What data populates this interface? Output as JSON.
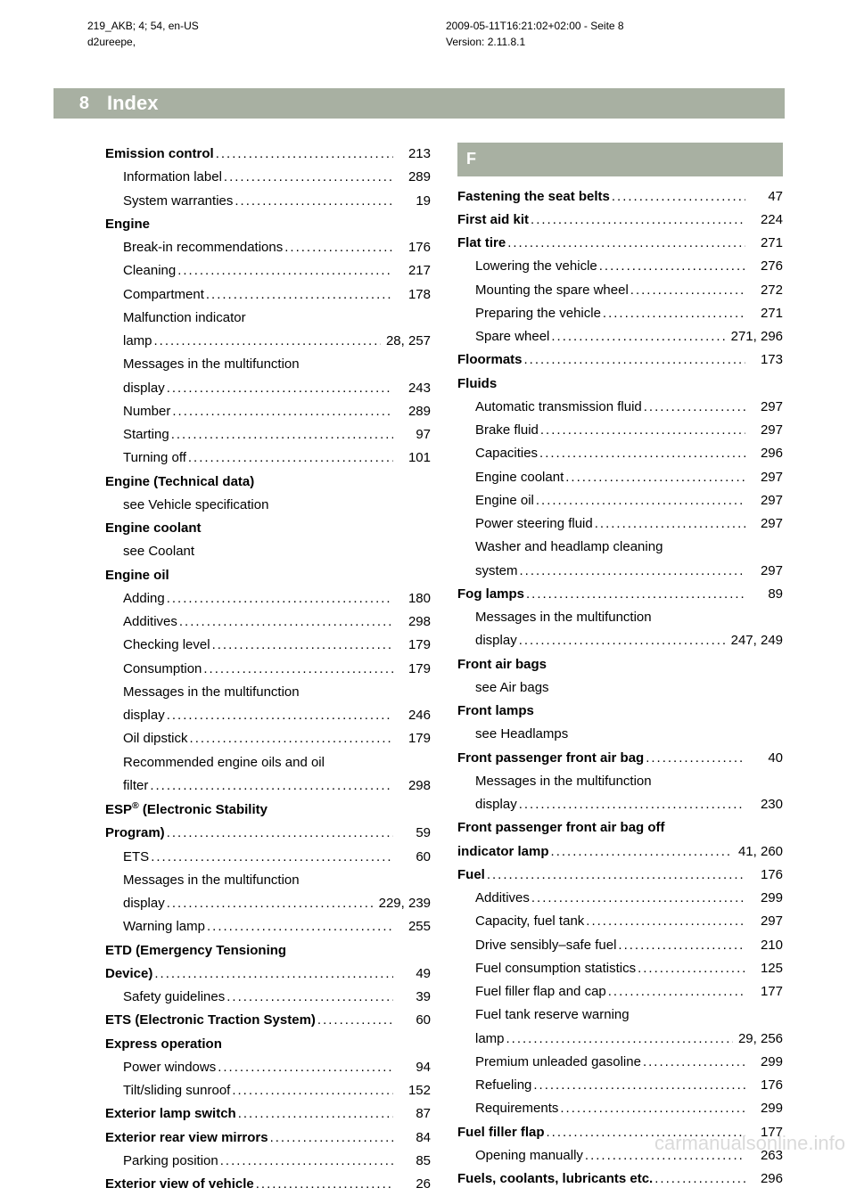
{
  "header": {
    "left_line1": "219_AKB; 4; 54, en-US",
    "left_line2": "d2ureepe,",
    "right_line1": "2009-05-11T16:21:02+02:00 - Seite 8",
    "right_line2": "Version: 2.11.8.1"
  },
  "pageNumber": "8",
  "indexTitle": "Index",
  "watermark": "carmanualsonline.info",
  "left": [
    {
      "t": "entry",
      "label": "Emission control",
      "bold": true,
      "page": "213"
    },
    {
      "t": "entry",
      "sub": true,
      "label": "Information label",
      "page": "289"
    },
    {
      "t": "entry",
      "sub": true,
      "label": "System warranties",
      "page": "19"
    },
    {
      "t": "head",
      "label": "Engine"
    },
    {
      "t": "entry",
      "sub": true,
      "label": "Break-in recommendations",
      "page": "176"
    },
    {
      "t": "entry",
      "sub": true,
      "label": "Cleaning",
      "page": "217"
    },
    {
      "t": "entry",
      "sub": true,
      "label": "Compartment",
      "page": "178"
    },
    {
      "t": "subhead",
      "label": "Malfunction indicator"
    },
    {
      "t": "entry",
      "sub": true,
      "label": "lamp",
      "page": "28, 257"
    },
    {
      "t": "subhead",
      "label": "Messages in the multifunction"
    },
    {
      "t": "entry",
      "sub": true,
      "label": "display",
      "page": "243"
    },
    {
      "t": "entry",
      "sub": true,
      "label": "Number",
      "page": "289"
    },
    {
      "t": "entry",
      "sub": true,
      "label": "Starting",
      "page": "97"
    },
    {
      "t": "entry",
      "sub": true,
      "label": "Turning off",
      "page": "101"
    },
    {
      "t": "head",
      "label": "Engine (Technical data)"
    },
    {
      "t": "subhead",
      "label": "see Vehicle specification"
    },
    {
      "t": "head",
      "label": "Engine coolant"
    },
    {
      "t": "subhead",
      "label": "see Coolant"
    },
    {
      "t": "head",
      "label": "Engine oil"
    },
    {
      "t": "entry",
      "sub": true,
      "label": "Adding",
      "page": "180"
    },
    {
      "t": "entry",
      "sub": true,
      "label": "Additives",
      "page": "298"
    },
    {
      "t": "entry",
      "sub": true,
      "label": "Checking level",
      "page": "179"
    },
    {
      "t": "entry",
      "sub": true,
      "label": "Consumption",
      "page": "179"
    },
    {
      "t": "subhead",
      "label": "Messages in the multifunction"
    },
    {
      "t": "entry",
      "sub": true,
      "label": "display",
      "page": "246"
    },
    {
      "t": "entry",
      "sub": true,
      "label": "Oil dipstick",
      "page": "179"
    },
    {
      "t": "subhead",
      "label": "Recommended engine oils and oil"
    },
    {
      "t": "entry",
      "sub": true,
      "label": "filter",
      "page": "298"
    },
    {
      "t": "esphead",
      "labelPre": "ESP",
      "labelSup": "®",
      "labelPost": " (Electronic Stability"
    },
    {
      "t": "entry",
      "label": "Program)",
      "bold": true,
      "page": "59"
    },
    {
      "t": "entry",
      "sub": true,
      "label": "ETS",
      "page": "60"
    },
    {
      "t": "subhead",
      "label": "Messages in the multifunction"
    },
    {
      "t": "entry",
      "sub": true,
      "label": "display",
      "page": "229, 239"
    },
    {
      "t": "entry",
      "sub": true,
      "label": "Warning lamp",
      "page": "255"
    },
    {
      "t": "head",
      "label": "ETD (Emergency Tensioning"
    },
    {
      "t": "entry",
      "label": "Device)",
      "bold": true,
      "page": "49"
    },
    {
      "t": "entry",
      "sub": true,
      "label": "Safety guidelines",
      "page": "39"
    },
    {
      "t": "entry",
      "label": "ETS (Electronic Traction System)",
      "bold": true,
      "page": "60"
    },
    {
      "t": "head",
      "label": "Express operation"
    },
    {
      "t": "entry",
      "sub": true,
      "label": "Power windows",
      "page": "94"
    },
    {
      "t": "entry",
      "sub": true,
      "label": "Tilt/sliding sunroof",
      "page": "152"
    },
    {
      "t": "entry",
      "label": "Exterior lamp switch",
      "bold": true,
      "page": "87"
    },
    {
      "t": "entry",
      "label": "Exterior rear view mirrors",
      "bold": true,
      "page": "84"
    },
    {
      "t": "entry",
      "sub": true,
      "label": "Parking position",
      "page": "85"
    },
    {
      "t": "entry",
      "label": "Exterior view of vehicle",
      "bold": true,
      "page": "26"
    }
  ],
  "right": [
    {
      "t": "letter",
      "label": "F"
    },
    {
      "t": "entry",
      "label": "Fastening the seat belts",
      "bold": true,
      "page": "47"
    },
    {
      "t": "entry",
      "label": "First aid kit",
      "bold": true,
      "page": "224"
    },
    {
      "t": "entry",
      "label": "Flat tire",
      "bold": true,
      "page": "271"
    },
    {
      "t": "entry",
      "sub": true,
      "label": "Lowering the vehicle",
      "page": "276"
    },
    {
      "t": "entry",
      "sub": true,
      "label": "Mounting the spare wheel",
      "page": "272"
    },
    {
      "t": "entry",
      "sub": true,
      "label": "Preparing the vehicle",
      "page": "271"
    },
    {
      "t": "entry",
      "sub": true,
      "label": "Spare wheel",
      "page": "271, 296"
    },
    {
      "t": "entry",
      "label": "Floormats",
      "bold": true,
      "page": "173"
    },
    {
      "t": "head",
      "label": "Fluids"
    },
    {
      "t": "entry",
      "sub": true,
      "label": "Automatic transmission fluid",
      "page": "297"
    },
    {
      "t": "entry",
      "sub": true,
      "label": "Brake fluid",
      "page": "297"
    },
    {
      "t": "entry",
      "sub": true,
      "label": "Capacities",
      "page": "296"
    },
    {
      "t": "entry",
      "sub": true,
      "label": "Engine coolant",
      "page": "297"
    },
    {
      "t": "entry",
      "sub": true,
      "label": "Engine oil",
      "page": "297"
    },
    {
      "t": "entry",
      "sub": true,
      "label": "Power steering fluid",
      "page": "297"
    },
    {
      "t": "subhead",
      "label": "Washer and headlamp cleaning"
    },
    {
      "t": "entry",
      "sub": true,
      "label": "system",
      "page": "297"
    },
    {
      "t": "entry",
      "label": "Fog lamps",
      "bold": true,
      "page": "89"
    },
    {
      "t": "subhead",
      "label": "Messages in the multifunction"
    },
    {
      "t": "entry",
      "sub": true,
      "label": "display",
      "page": "247, 249"
    },
    {
      "t": "head",
      "label": "Front air bags"
    },
    {
      "t": "subhead",
      "label": "see Air bags"
    },
    {
      "t": "head",
      "label": "Front lamps"
    },
    {
      "t": "subhead",
      "label": "see Headlamps"
    },
    {
      "t": "entry",
      "label": "Front passenger front air bag",
      "bold": true,
      "page": "40"
    },
    {
      "t": "subhead",
      "label": "Messages in the multifunction"
    },
    {
      "t": "entry",
      "sub": true,
      "label": "display",
      "page": "230"
    },
    {
      "t": "head",
      "label": "Front passenger front air bag off"
    },
    {
      "t": "entry",
      "label": "indicator lamp",
      "bold": true,
      "page": "41, 260"
    },
    {
      "t": "entry",
      "label": "Fuel",
      "bold": true,
      "page": "176"
    },
    {
      "t": "entry",
      "sub": true,
      "label": "Additives",
      "page": "299"
    },
    {
      "t": "entry",
      "sub": true,
      "label": "Capacity, fuel tank",
      "page": "297"
    },
    {
      "t": "entry",
      "sub": true,
      "label": "Drive sensibly–safe fuel",
      "page": "210"
    },
    {
      "t": "entry",
      "sub": true,
      "label": "Fuel consumption statistics",
      "page": "125"
    },
    {
      "t": "entry",
      "sub": true,
      "label": "Fuel filler flap and cap",
      "page": "177"
    },
    {
      "t": "subhead",
      "label": "Fuel tank reserve warning"
    },
    {
      "t": "entry",
      "sub": true,
      "label": "lamp",
      "page": "29, 256"
    },
    {
      "t": "entry",
      "sub": true,
      "label": "Premium unleaded gasoline",
      "page": "299"
    },
    {
      "t": "entry",
      "sub": true,
      "label": "Refueling",
      "page": "176"
    },
    {
      "t": "entry",
      "sub": true,
      "label": "Requirements",
      "page": "299"
    },
    {
      "t": "entry",
      "label": "Fuel filler flap",
      "bold": true,
      "page": "177"
    },
    {
      "t": "entry",
      "sub": true,
      "label": "Opening manually",
      "page": "263"
    },
    {
      "t": "entry",
      "label": "Fuels, coolants, lubricants etc.",
      "bold": true,
      "page": "296"
    }
  ]
}
